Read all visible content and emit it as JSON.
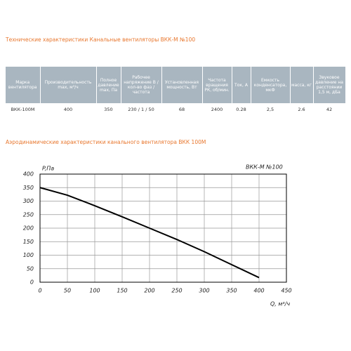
{
  "header": {
    "title": "Технические характеристики Канальные вентиляторы ВКК-М №100"
  },
  "table": {
    "headers": [
      "Марка вентилятора",
      "Производительность max, м³/ч",
      "Полное давление max, Па",
      "Рабочее напряжение В / кол-во фаз / частота",
      "Установленная мощность, Вт",
      "Частота вращения РК, об/мин.",
      "Ток, А",
      "Емкость конденсатора, мкФ",
      "масса, кг",
      "Звуковое давление на расстоянии 1,5 м, дБа"
    ],
    "rows": [
      [
        "ВКК-100М",
        "400",
        "350",
        "230 / 1 / 50",
        "68",
        "2400",
        "0.28",
        "2,5",
        "2.6",
        "42"
      ]
    ]
  },
  "section": {
    "title": "Аэродинамические характеристики канального вентилятора ВКК 100М"
  },
  "chart_data": {
    "type": "line",
    "title": "ВКК-М №100",
    "y_label": "P,Па",
    "x_label": "Q, м³/ч",
    "x": [
      0,
      50,
      100,
      150,
      200,
      250,
      300,
      350,
      400
    ],
    "values": [
      350,
      322,
      283,
      242,
      200,
      158,
      113,
      65,
      17
    ],
    "color": "#000000",
    "xlim": [
      0,
      450
    ],
    "ylim": [
      0,
      400
    ],
    "xticks": [
      0,
      50,
      100,
      150,
      200,
      250,
      300,
      350,
      400,
      450
    ],
    "yticks": [
      0,
      50,
      100,
      150,
      200,
      250,
      300,
      350,
      400
    ],
    "grid": true
  }
}
